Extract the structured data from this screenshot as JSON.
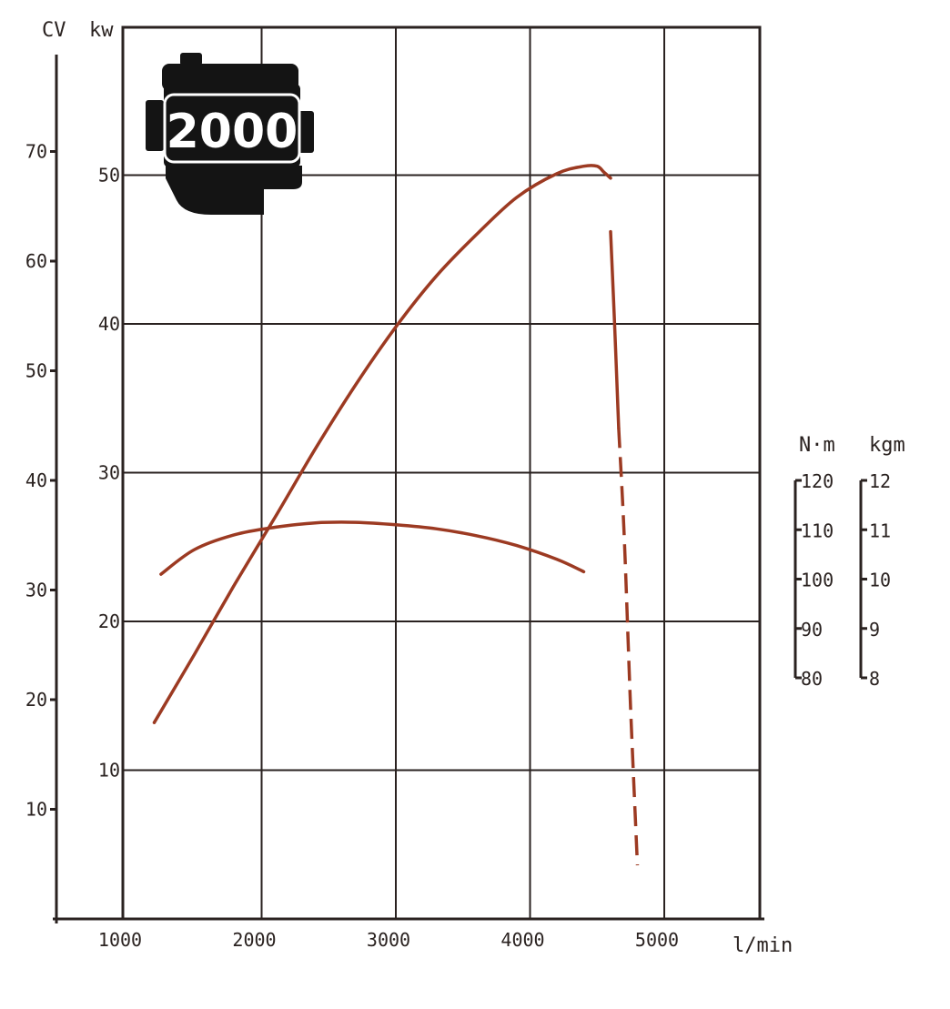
{
  "chart_data": {
    "type": "line",
    "x_unit": "l/min",
    "x_ticks": [
      1000,
      2000,
      3000,
      4000,
      5000
    ],
    "xlim": [
      1000,
      5000
    ],
    "grid": true,
    "axes": {
      "kw": {
        "label": "kw",
        "ticks": [
          10,
          20,
          30,
          40,
          50
        ],
        "ylim": [
          0,
          50
        ]
      },
      "cv": {
        "label": "CV",
        "ticks": [
          10,
          20,
          30,
          40,
          50,
          60,
          70
        ]
      },
      "nm": {
        "label": "N·m",
        "ticks": [
          80,
          90,
          100,
          110,
          120
        ]
      },
      "kgm": {
        "label": "kgm",
        "ticks": [
          8,
          9,
          10,
          11,
          12
        ]
      }
    },
    "series": [
      {
        "axis": "kw",
        "x": [
          1200,
          1500,
          1800,
          2100,
          2400,
          2700,
          3000,
          3300,
          3600,
          3900,
          4200,
          4400,
          4500,
          4550,
          4600
        ],
        "values": [
          13.2,
          17.8,
          22.5,
          27.0,
          31.6,
          35.9,
          39.8,
          43.2,
          46.0,
          48.5,
          50.1,
          50.6,
          50.6,
          50.2,
          49.8
        ],
        "line_style": "solid"
      },
      {
        "axis": "kw",
        "x": [
          4600,
          4630,
          4660
        ],
        "values": [
          46.2,
          40.0,
          33.0
        ],
        "line_style": "solid"
      },
      {
        "axis": "kw",
        "x": [
          4660,
          4700,
          4750,
          4800
        ],
        "values": [
          33.0,
          26.0,
          14.0,
          3.6
        ],
        "line_style": "dashed"
      },
      {
        "axis": "nm",
        "x": [
          1250,
          1500,
          1800,
          2100,
          2400,
          2700,
          3000,
          3300,
          3600,
          3900,
          4200,
          4400
        ],
        "values": [
          101,
          106,
          109,
          110.5,
          111.4,
          111.5,
          111.0,
          110.2,
          108.8,
          106.8,
          104.0,
          101.5
        ],
        "line_style": "solid"
      }
    ]
  },
  "logo": {
    "text": "2000"
  }
}
